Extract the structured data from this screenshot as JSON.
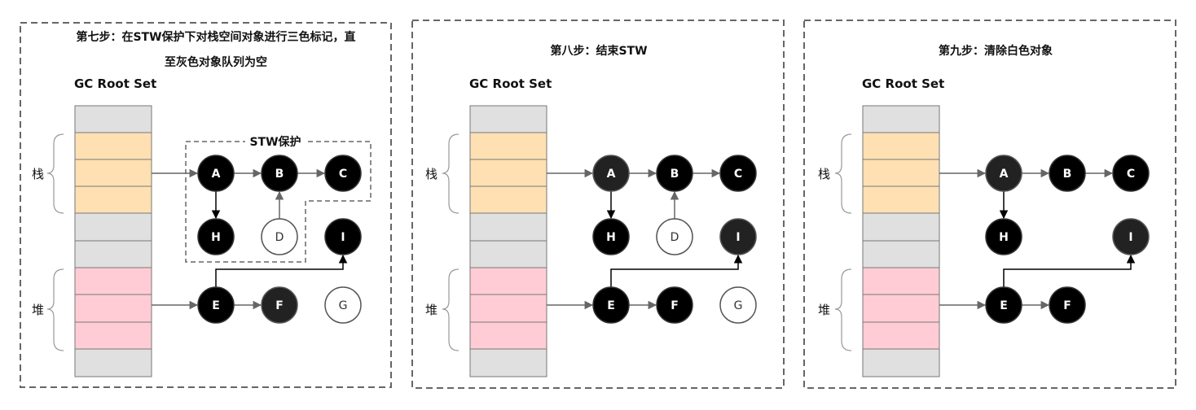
{
  "panels": [
    {
      "title_lines": [
        "第七步：在STW保护下对栈空间对象进行三色标记，直",
        "至灰色对象队列为空"
      ],
      "root_set_label": "GC Root Set",
      "stack_label": "栈",
      "heap_label": "堆",
      "stw_label": "STW保护",
      "show_stw": true,
      "nodes": [
        {
          "id": "A",
          "color": "black"
        },
        {
          "id": "B",
          "color": "black"
        },
        {
          "id": "C",
          "color": "black"
        },
        {
          "id": "H",
          "color": "black"
        },
        {
          "id": "D",
          "color": "white"
        },
        {
          "id": "I",
          "color": "black"
        },
        {
          "id": "E",
          "color": "black"
        },
        {
          "id": "F",
          "color": "dark"
        },
        {
          "id": "G",
          "color": "white"
        }
      ]
    },
    {
      "title_lines": [
        "第八步：结束STW"
      ],
      "root_set_label": "GC Root Set",
      "stack_label": "栈",
      "heap_label": "堆",
      "show_stw": false,
      "nodes": [
        {
          "id": "A",
          "color": "dark"
        },
        {
          "id": "B",
          "color": "black"
        },
        {
          "id": "C",
          "color": "black"
        },
        {
          "id": "H",
          "color": "black"
        },
        {
          "id": "D",
          "color": "white"
        },
        {
          "id": "I",
          "color": "dark"
        },
        {
          "id": "E",
          "color": "black"
        },
        {
          "id": "F",
          "color": "black"
        },
        {
          "id": "G",
          "color": "white"
        }
      ]
    },
    {
      "title_lines": [
        "第九步：清除白色对象"
      ],
      "root_set_label": "GC Root Set",
      "stack_label": "栈",
      "heap_label": "堆",
      "show_stw": false,
      "nodes": [
        {
          "id": "A",
          "color": "dark"
        },
        {
          "id": "B",
          "color": "black"
        },
        {
          "id": "C",
          "color": "black"
        },
        {
          "id": "H",
          "color": "black"
        },
        {
          "id": "I",
          "color": "dark"
        },
        {
          "id": "E",
          "color": "black"
        },
        {
          "id": "F",
          "color": "black"
        }
      ]
    }
  ],
  "colors": {
    "stack_cell": "#ffe0b3",
    "heap_cell": "#ffccd5",
    "empty_cell": "#e0e0e0",
    "frame": "#666666"
  }
}
